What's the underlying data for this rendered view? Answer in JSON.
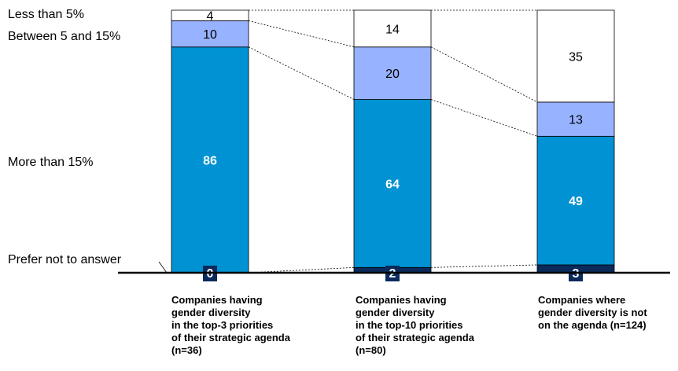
{
  "chart_data": {
    "type": "bar",
    "stacked": true,
    "percent": true,
    "categories": [
      "Companies having\ngender diversity\nin the top-3 priorities\nof their strategic agenda\n(n=36)",
      "Companies having\ngender diversity\nin the top-10 priorities\nof their strategic agenda\n(n=80)",
      "Companies where\ngender diversity is not\non the agenda (n=124)"
    ],
    "series": [
      {
        "name": "Prefer not to answer",
        "values": [
          0,
          2,
          3
        ],
        "color": "#0a2a5c",
        "label_color": "#ffffff"
      },
      {
        "name": "More than 15%",
        "values": [
          86,
          64,
          49
        ],
        "color": "#0092d2",
        "label_color": "#ffffff"
      },
      {
        "name": "Between 5 and 15%",
        "values": [
          10,
          20,
          13
        ],
        "color": "#97b2ff",
        "label_color": "#000000"
      },
      {
        "name": "Less than 5%",
        "values": [
          4,
          14,
          35
        ],
        "color": "#ffffff",
        "label_color": "#000000"
      }
    ],
    "ylim": [
      0,
      100
    ],
    "grid": false,
    "legend": "left, inline labels"
  }
}
